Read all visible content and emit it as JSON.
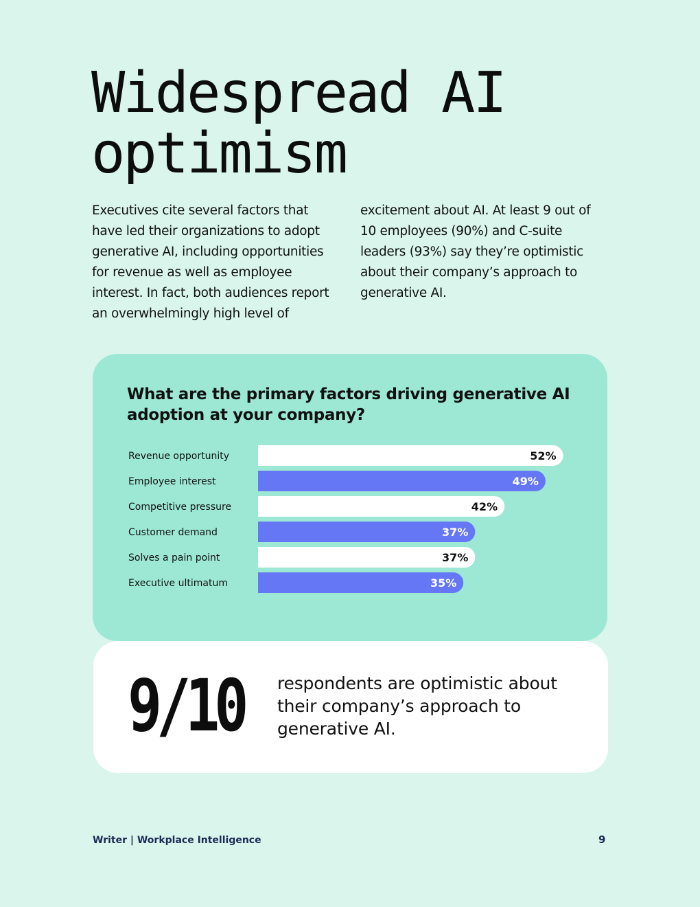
{
  "page": {
    "title": "Widespread AI optimism",
    "intro": "Executives cite several factors that have led their organizations to adopt generative AI, including opportunities for revenue as well as employee interest. In fact, both audiences report an overwhelmingly high level of excitement about AI. At least 9 out of 10 employees (90%) and C-suite leaders (93%) say they’re optimistic about their company’s approach to generative AI."
  },
  "chart_data": {
    "type": "bar",
    "orientation": "horizontal",
    "title": "What are the primary factors driving generative AI adoption at your company?",
    "categories": [
      "Revenue opportunity",
      "Employee interest",
      "Competitive pressure",
      "Customer demand",
      "Solves a pain point",
      "Executive ultimatum"
    ],
    "values": [
      52,
      49,
      42,
      37,
      37,
      35
    ],
    "value_labels": [
      "52%",
      "49%",
      "42%",
      "37%",
      "37%",
      "35%"
    ],
    "unit": "%",
    "bar_colors": [
      "#ffffff",
      "#6677f5",
      "#ffffff",
      "#6677f5",
      "#ffffff",
      "#6677f5"
    ],
    "label_colors": [
      "#111111",
      "#ffffff",
      "#111111",
      "#ffffff",
      "#111111",
      "#ffffff"
    ]
  },
  "stat": {
    "number": "9/10",
    "text": "respondents are optimistic about their company’s approach to generative AI."
  },
  "footer": {
    "left": "Writer | Workplace Intelligence",
    "page_number": "9"
  },
  "colors": {
    "background": "#d9f5ec",
    "chart_card": "#9de8d4",
    "accent_bar": "#6677f5",
    "footer_text": "#1d2a55"
  }
}
